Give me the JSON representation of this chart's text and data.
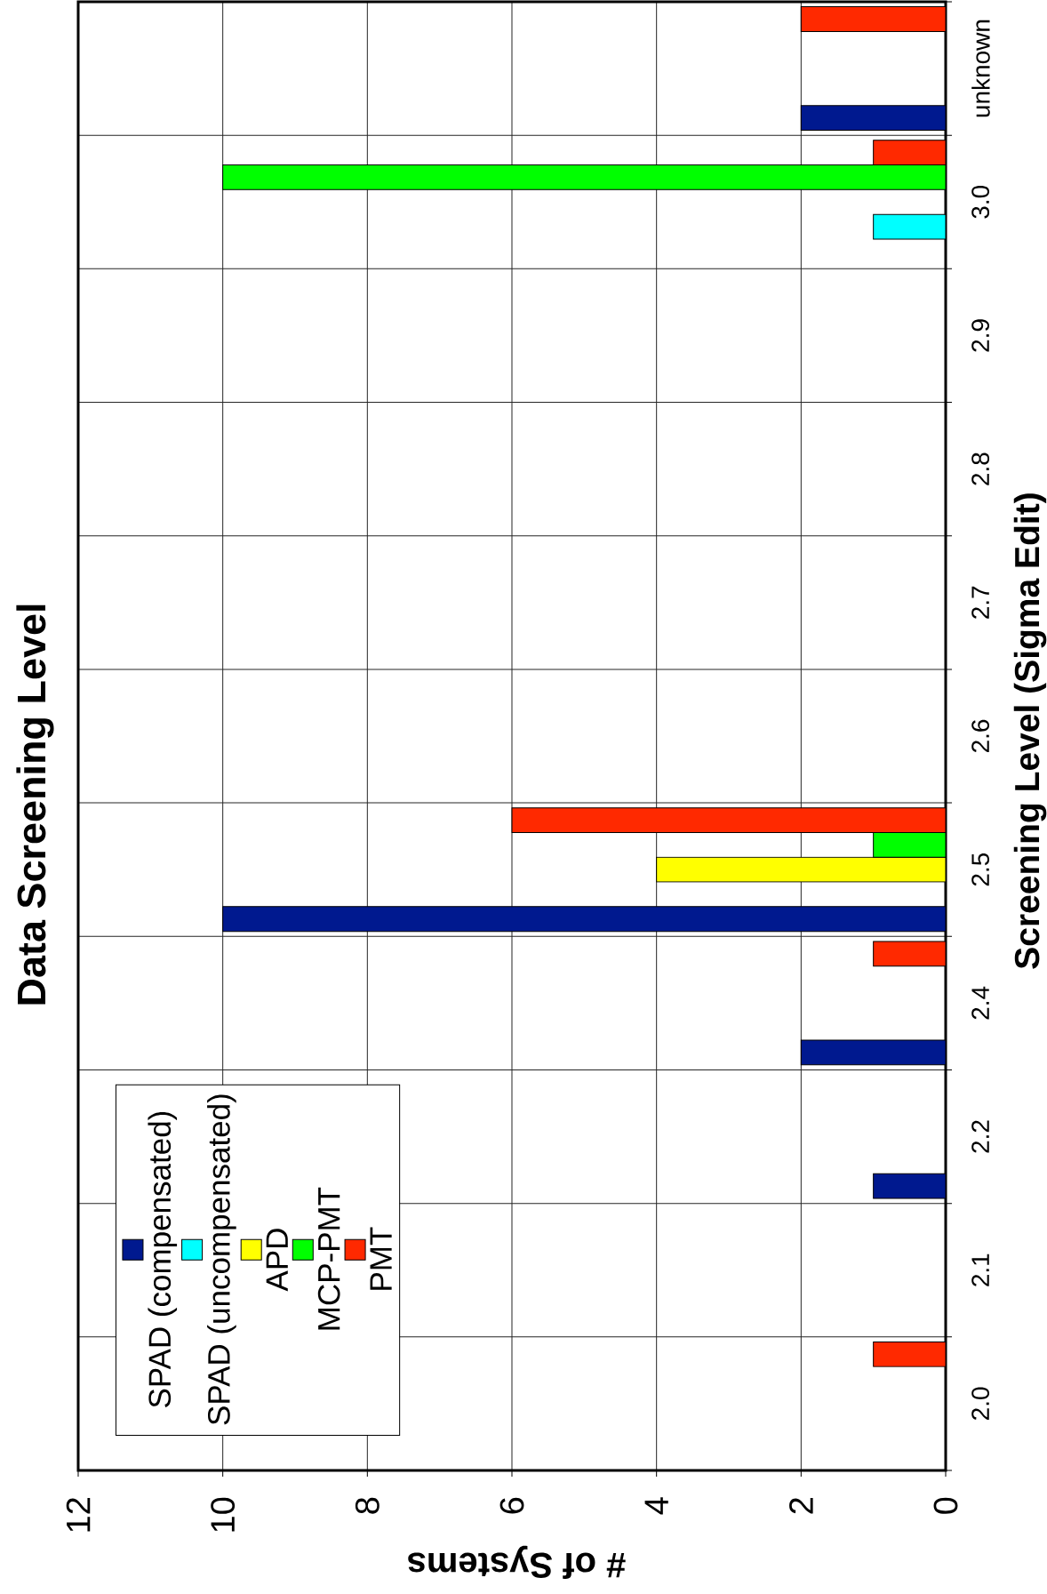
{
  "chart_data": {
    "type": "bar",
    "title": "Data Screening Level",
    "xlabel": "# of Systems",
    "ylabel": "Screening Level (Sigma Edit)",
    "orientation": "horizontal",
    "categories": [
      "unknown",
      "3.0",
      "2.9",
      "2.8",
      "2.7",
      "2.6",
      "2.5",
      "2.4",
      "2.2",
      "2.1",
      "2.0"
    ],
    "series": [
      {
        "name": "SPAD (compensated)",
        "color": "#00198F",
        "values": [
          2,
          null,
          null,
          null,
          null,
          null,
          10,
          2,
          1,
          null,
          null
        ]
      },
      {
        "name": "SPAD (uncompensated)",
        "color": "#00FFFF",
        "values": [
          null,
          1,
          null,
          null,
          null,
          null,
          null,
          null,
          null,
          null,
          null
        ]
      },
      {
        "name": "APD",
        "color": "#FFFF00",
        "values": [
          null,
          null,
          null,
          null,
          null,
          null,
          4,
          null,
          null,
          null,
          null
        ]
      },
      {
        "name": "MCP-PMT",
        "color": "#00FF00",
        "values": [
          null,
          10,
          null,
          null,
          null,
          null,
          1,
          null,
          null,
          null,
          null
        ]
      },
      {
        "name": "PMT",
        "color": "#FF2900",
        "values": [
          2,
          1,
          null,
          null,
          null,
          null,
          6,
          1,
          null,
          null,
          1
        ]
      }
    ],
    "xlim": [
      12,
      0
    ],
    "xticks": [
      0,
      2,
      4,
      6,
      8,
      10,
      12
    ],
    "grid": true,
    "legend": "bottom left"
  }
}
